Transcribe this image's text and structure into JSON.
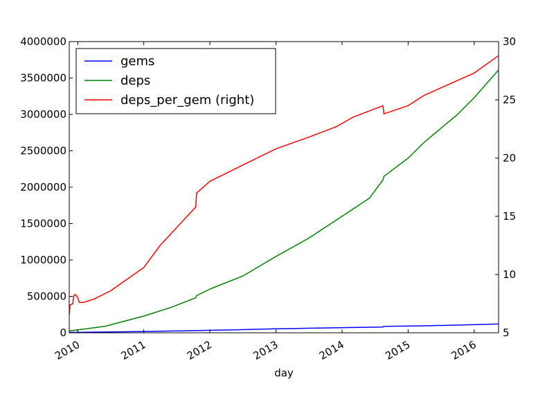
{
  "chart_data": {
    "type": "line",
    "title": "",
    "xlabel": "day",
    "ylabel": "",
    "ylabel_right": "",
    "x_ticks": [
      "2010",
      "2011",
      "2012",
      "2013",
      "2014",
      "2015",
      "2016"
    ],
    "xlim": [
      "2009-11-15",
      "2016-05-15"
    ],
    "ylim": [
      0,
      4000000
    ],
    "ylim_right": [
      5,
      30
    ],
    "y_ticks": [
      "0",
      "500000",
      "1000000",
      "1500000",
      "2000000",
      "2500000",
      "3000000",
      "3500000",
      "4000000"
    ],
    "y_ticks_right": [
      "5",
      "10",
      "15",
      "20",
      "25",
      "30"
    ],
    "grid": false,
    "legend_placement": "top-left",
    "series": [
      {
        "name": "gems",
        "color": "#0000ff",
        "axis": "left",
        "points": [
          [
            "2009-11-15",
            5000
          ],
          [
            "2010-06-01",
            10000
          ],
          [
            "2011-01-01",
            18000
          ],
          [
            "2011-10-01",
            30000
          ],
          [
            "2012-06-01",
            42000
          ],
          [
            "2013-01-01",
            55000
          ],
          [
            "2013-08-01",
            65000
          ],
          [
            "2014-05-01",
            75000
          ],
          [
            "2014-08-15",
            80000
          ],
          [
            "2014-08-20",
            88000
          ],
          [
            "2015-05-01",
            97000
          ],
          [
            "2016-01-01",
            112000
          ],
          [
            "2016-05-15",
            122000
          ]
        ]
      },
      {
        "name": "deps",
        "color": "#008000",
        "axis": "left",
        "points": [
          [
            "2009-11-15",
            25000
          ],
          [
            "2010-01-01",
            40000
          ],
          [
            "2010-06-01",
            90000
          ],
          [
            "2011-01-01",
            230000
          ],
          [
            "2011-06-01",
            350000
          ],
          [
            "2011-10-15",
            480000
          ],
          [
            "2011-10-20",
            510000
          ],
          [
            "2012-01-01",
            600000
          ],
          [
            "2012-07-01",
            780000
          ],
          [
            "2013-01-01",
            1050000
          ],
          [
            "2013-07-01",
            1300000
          ],
          [
            "2013-12-01",
            1550000
          ],
          [
            "2014-06-01",
            1850000
          ],
          [
            "2014-08-15",
            2100000
          ],
          [
            "2014-08-20",
            2150000
          ],
          [
            "2015-01-01",
            2400000
          ],
          [
            "2015-04-01",
            2620000
          ],
          [
            "2015-10-01",
            3000000
          ],
          [
            "2016-01-01",
            3230000
          ],
          [
            "2016-05-15",
            3610000
          ]
        ]
      },
      {
        "name": "deps_per_gem (right)",
        "color": "#ff0000",
        "axis": "right",
        "points": [
          [
            "2009-11-15",
            6.6
          ],
          [
            "2009-11-20",
            7.4
          ],
          [
            "2009-12-05",
            7.5
          ],
          [
            "2009-12-10",
            8.2
          ],
          [
            "2009-12-20",
            8.3
          ],
          [
            "2010-01-01",
            8.0
          ],
          [
            "2010-01-10",
            7.6
          ],
          [
            "2010-02-01",
            7.6
          ],
          [
            "2010-04-01",
            7.9
          ],
          [
            "2010-07-01",
            8.6
          ],
          [
            "2011-01-01",
            10.6
          ],
          [
            "2011-04-01",
            12.5
          ],
          [
            "2011-10-15",
            15.8
          ],
          [
            "2011-10-20",
            17.0
          ],
          [
            "2012-01-01",
            18.0
          ],
          [
            "2012-07-01",
            19.4
          ],
          [
            "2013-01-01",
            20.8
          ],
          [
            "2013-07-01",
            21.8
          ],
          [
            "2013-12-01",
            22.7
          ],
          [
            "2014-03-01",
            23.5
          ],
          [
            "2014-08-15",
            24.5
          ],
          [
            "2014-08-20",
            23.8
          ],
          [
            "2015-01-01",
            24.5
          ],
          [
            "2015-04-01",
            25.4
          ],
          [
            "2016-01-01",
            27.3
          ],
          [
            "2016-05-15",
            28.8
          ]
        ]
      }
    ]
  }
}
